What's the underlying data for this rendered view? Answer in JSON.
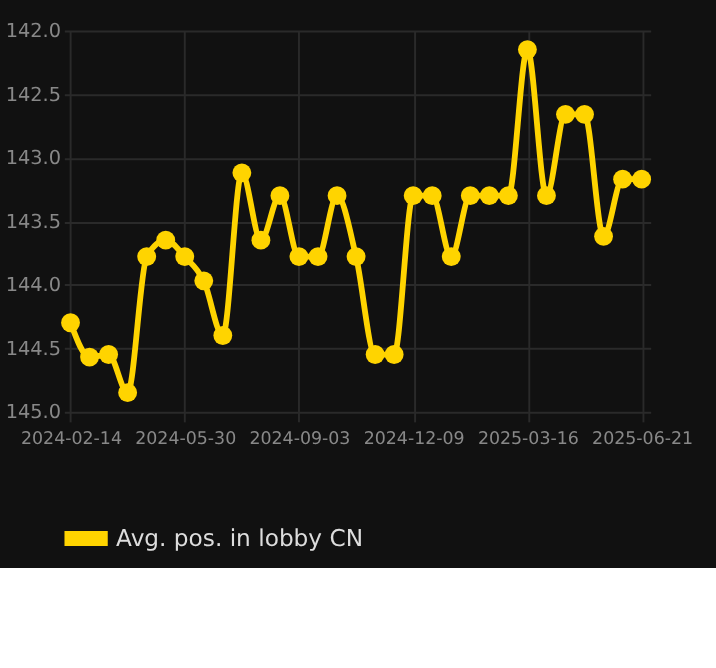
{
  "chart_data": {
    "type": "line",
    "categories": [
      "2024-02-14",
      null,
      null,
      null,
      null,
      null,
      "2024-05-30",
      null,
      null,
      null,
      null,
      null,
      "2024-09-03",
      null,
      null,
      null,
      null,
      null,
      "2024-12-09",
      null,
      null,
      null,
      null,
      null,
      "2025-03-16",
      null,
      null,
      null,
      null,
      null,
      "2025-06-21"
    ],
    "series": [
      {
        "name": "Avg. pos. in lobby CN",
        "color": "#ffd400",
        "values": [
          144.3,
          144.57,
          144.55,
          144.85,
          143.78,
          143.65,
          143.78,
          143.97,
          144.4,
          143.12,
          143.65,
          143.3,
          143.78,
          143.78,
          143.3,
          143.78,
          144.55,
          144.55,
          143.3,
          143.3,
          143.78,
          143.3,
          143.3,
          143.3,
          142.15,
          143.3,
          142.66,
          142.66,
          143.62,
          143.17,
          143.17
        ]
      }
    ],
    "ylim": [
      145.0,
      142.0
    ],
    "yticks": [
      {
        "value": 142,
        "label": "142.0"
      },
      {
        "value": 142.5,
        "label": "142.5"
      },
      {
        "value": 143,
        "label": "143.0"
      },
      {
        "value": 143.5,
        "label": "143.5"
      },
      {
        "value": 144,
        "label": "144.0"
      },
      {
        "value": 144.5,
        "label": "144.5"
      },
      {
        "value": 145,
        "label": "145.0"
      }
    ],
    "grid": true,
    "legend": "bottom",
    "marker": "circle",
    "line_style": "solid"
  }
}
